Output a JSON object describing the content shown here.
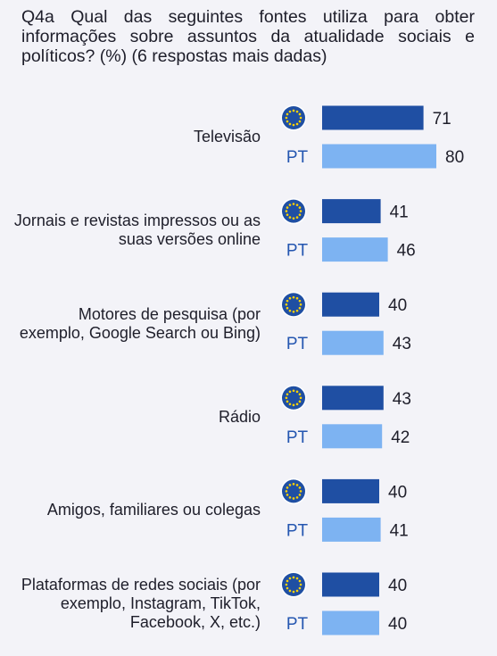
{
  "title": "Q4a Qual das seguintes fontes utiliza para obter informações sobre assuntos da atualidade sociais e políticos? (%) (6 respostas mais dadas)",
  "colors": {
    "eu": "#1f4fa3",
    "pt": "#7db3f2",
    "eu_star": "#ffd200",
    "background": "#f3f3f8"
  },
  "chart_data": {
    "type": "bar",
    "orientation": "horizontal",
    "categories": [
      "Televisão",
      "Jornais e revistas impressos ou as suas versões online",
      "Motores de pesquisa (por exemplo, Google Search ou Bing)",
      "Rádio",
      "Amigos, familiares ou colegas",
      "Plataformas de redes sociais (por exemplo, Instagram, TikTok, Facebook, X, etc.)"
    ],
    "series": [
      {
        "name": "",
        "icon": "eu-flag-icon",
        "values": [
          71,
          41,
          40,
          43,
          40,
          40
        ]
      },
      {
        "name": "PT",
        "values": [
          80,
          46,
          43,
          42,
          41,
          40
        ]
      }
    ],
    "xlim": [
      0,
      80
    ],
    "grid": false,
    "legend": "none"
  }
}
